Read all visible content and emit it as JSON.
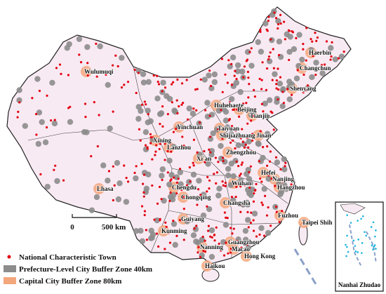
{
  "cities": [
    "Haerbin",
    "Changchun",
    "Shenyang",
    "Wulumuqi",
    "Huhehaote",
    "Beijing",
    "Tianjin",
    "Yinchuan",
    "Taiyuan",
    "Shijiazhuang",
    "Jinan",
    "Xining",
    "Lanzhou",
    "Zhengzhou",
    "Xi'an",
    "Hefei",
    "Nanjing",
    "Hangzhou",
    "Wuhan",
    "Lhasa",
    "Chengdu",
    "Chongqing",
    "Changsha",
    "Guiyang",
    "Fuzhou",
    "Taipei Shih",
    "Kunming",
    "Nanning",
    "Guangzhou",
    "Macao",
    "Hong Kong",
    "Haikou"
  ],
  "legend": {
    "town": "National Characteristic Town",
    "prefecture": "Prefecture-Level City Buffer Zone 40km",
    "capital": "Capital City Buffer Zone 80km"
  },
  "scale_bar": {
    "start": "0",
    "end": "500 km"
  },
  "inset": {
    "title": "Nanhai Zhudao"
  }
}
